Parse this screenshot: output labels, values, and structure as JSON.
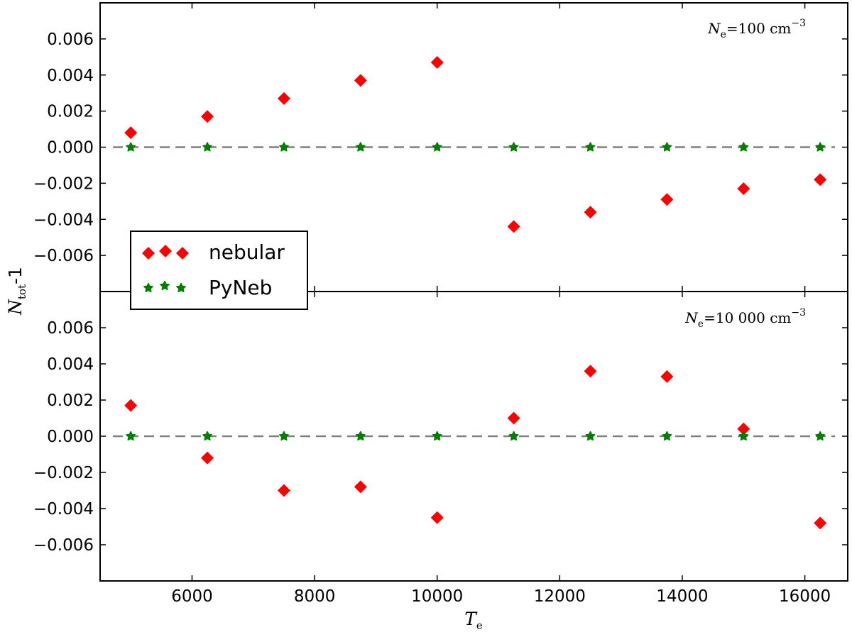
{
  "chart_data": [
    {
      "type": "scatter",
      "annotation": {
        "var": "N",
        "sub": "e",
        "text": "=100 cm",
        "sup": "−3"
      },
      "xlim": [
        4500,
        16700
      ],
      "ylim": [
        -0.008,
        0.008
      ],
      "grid": false,
      "reference_line": 0.0,
      "yticks": [
        -0.006,
        -0.004,
        -0.002,
        0.0,
        0.002,
        0.004,
        0.006
      ],
      "ytick_labels": [
        "−0.006",
        "−0.004",
        "−0.002",
        "0.000",
        "0.002",
        "0.004",
        "0.006"
      ],
      "series": [
        {
          "name": "nebular",
          "marker": "diamond",
          "color": "#ff0000",
          "x": [
            5000,
            6250,
            7500,
            8750,
            10000,
            11250,
            12500,
            13750,
            15000,
            16250
          ],
          "y": [
            0.0008,
            0.0017,
            0.0027,
            0.0037,
            0.0047,
            -0.0044,
            -0.0036,
            -0.0029,
            -0.0023,
            -0.0018
          ]
        },
        {
          "name": "PyNeb",
          "marker": "star",
          "color": "#007f00",
          "x": [
            5000,
            6250,
            7500,
            8750,
            10000,
            11250,
            12500,
            13750,
            15000,
            16250
          ],
          "y": [
            0.0,
            0.0,
            0.0,
            0.0,
            0.0,
            0.0,
            0.0,
            0.0,
            0.0,
            0.0
          ]
        }
      ]
    },
    {
      "type": "scatter",
      "annotation": {
        "var": "N",
        "sub": "e",
        "text": "=10 000 cm",
        "sup": "−3"
      },
      "xlim": [
        4500,
        16700
      ],
      "ylim": [
        -0.008,
        0.008
      ],
      "grid": false,
      "reference_line": 0.0,
      "yticks": [
        -0.006,
        -0.004,
        -0.002,
        0.0,
        0.002,
        0.004,
        0.006
      ],
      "ytick_labels": [
        "−0.006",
        "−0.004",
        "−0.002",
        "0.000",
        "0.002",
        "0.004",
        "0.006"
      ],
      "series": [
        {
          "name": "nebular",
          "marker": "diamond",
          "color": "#ff0000",
          "x": [
            5000,
            6250,
            7500,
            8750,
            10000,
            11250,
            12500,
            13750,
            15000,
            16250
          ],
          "y": [
            0.0017,
            -0.0012,
            -0.003,
            -0.0028,
            -0.0045,
            0.001,
            0.0036,
            0.0033,
            0.0004,
            -0.0048
          ]
        },
        {
          "name": "PyNeb",
          "marker": "star",
          "color": "#007f00",
          "x": [
            5000,
            6250,
            7500,
            8750,
            10000,
            11250,
            12500,
            13750,
            15000,
            16250
          ],
          "y": [
            0.0,
            0.0,
            0.0,
            0.0,
            0.0,
            0.0,
            0.0,
            0.0,
            0.0,
            0.0
          ]
        }
      ]
    }
  ],
  "xaxis": {
    "ticks": [
      6000,
      8000,
      10000,
      12000,
      14000,
      16000
    ],
    "tick_labels": [
      "6000",
      "8000",
      "10000",
      "12000",
      "14000",
      "16000"
    ],
    "label_var": "T",
    "label_sub": "e"
  },
  "yaxis": {
    "label_var": "N",
    "label_sub": "tot",
    "label_suffix": "-1"
  },
  "legend": {
    "entries": [
      "nebular",
      "PyNeb"
    ]
  }
}
